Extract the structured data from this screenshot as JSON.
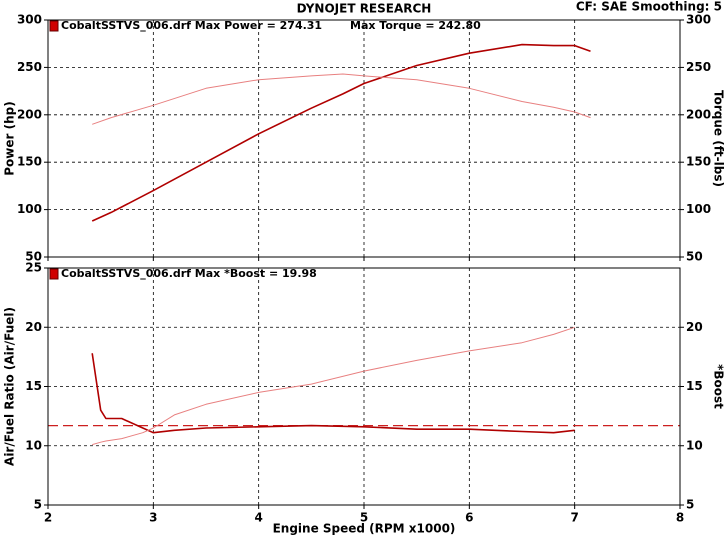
{
  "header": {
    "title": "DYNOJET RESEARCH",
    "settings": "CF: SAE  Smoothing: 5"
  },
  "chart_data": [
    {
      "type": "line",
      "annotations": [
        "CobaltSSTVS_006.drf Max Power = 274.31",
        "Max Torque = 242.80"
      ],
      "ylabel": "Power (hp)",
      "y2label": "Torque (ft-lbs)",
      "x": [
        2.42,
        2.6,
        3.0,
        3.5,
        4.0,
        4.5,
        4.8,
        5.0,
        5.5,
        6.0,
        6.5,
        6.8,
        7.0,
        7.15
      ],
      "series": [
        {
          "color": "#b00000",
          "width": 1.6,
          "values": [
            88,
            97,
            120,
            150,
            180,
            207,
            222,
            233,
            252,
            265,
            274,
            273,
            273,
            267
          ]
        },
        {
          "color": "#e88080",
          "width": 1,
          "axis": "y2",
          "values": [
            190,
            197,
            210,
            228,
            237,
            241,
            243,
            241,
            237,
            228,
            214,
            208,
            203,
            197
          ]
        }
      ],
      "xlim": [
        2,
        8
      ],
      "xticks": [
        2,
        3,
        4,
        5,
        6,
        7,
        8
      ],
      "xtick_labels": false,
      "ylim": [
        50,
        300
      ],
      "yticks": [
        50,
        100,
        150,
        200,
        250,
        300
      ],
      "y2lim": [
        50,
        300
      ],
      "y2ticks": [
        50,
        100,
        150,
        200,
        250,
        300
      ],
      "grid": true
    },
    {
      "type": "line",
      "annotations": [
        "CobaltSSTVS_006.drf Max *Boost = 19.98"
      ],
      "ylabel": "Air/Fuel Ratio (Air/Fuel)",
      "y2label": "*Boost",
      "xlabel": "Engine Speed (RPM x1000)",
      "x": [
        2.42,
        2.5,
        2.55,
        2.7,
        2.9,
        3.0,
        3.2,
        3.5,
        4.0,
        4.5,
        5.0,
        5.5,
        6.0,
        6.5,
        6.8,
        7.0
      ],
      "series": [
        {
          "color": "#b00000",
          "width": 1.6,
          "values": [
            17.8,
            13.0,
            12.3,
            12.3,
            11.5,
            11.1,
            11.3,
            11.5,
            11.6,
            11.7,
            11.6,
            11.4,
            11.4,
            11.2,
            11.1,
            11.3
          ]
        },
        {
          "color": "#e88080",
          "width": 1,
          "axis": "y2",
          "values": [
            10.1,
            10.3,
            10.4,
            10.6,
            11.1,
            11.5,
            12.6,
            13.5,
            14.5,
            15.2,
            16.3,
            17.2,
            18.0,
            18.7,
            19.4,
            20.0
          ]
        }
      ],
      "reference_line": 11.7,
      "reference_color": "#cc2020",
      "xlim": [
        2,
        8
      ],
      "xticks": [
        2,
        3,
        4,
        5,
        6,
        7,
        8
      ],
      "xtick_labels": true,
      "ylim": [
        5,
        25
      ],
      "yticks": [
        5,
        10,
        15,
        20,
        25
      ],
      "y2lim": [
        5,
        25
      ],
      "y2ticks": [
        5,
        10,
        15,
        20
      ],
      "grid": true
    }
  ]
}
